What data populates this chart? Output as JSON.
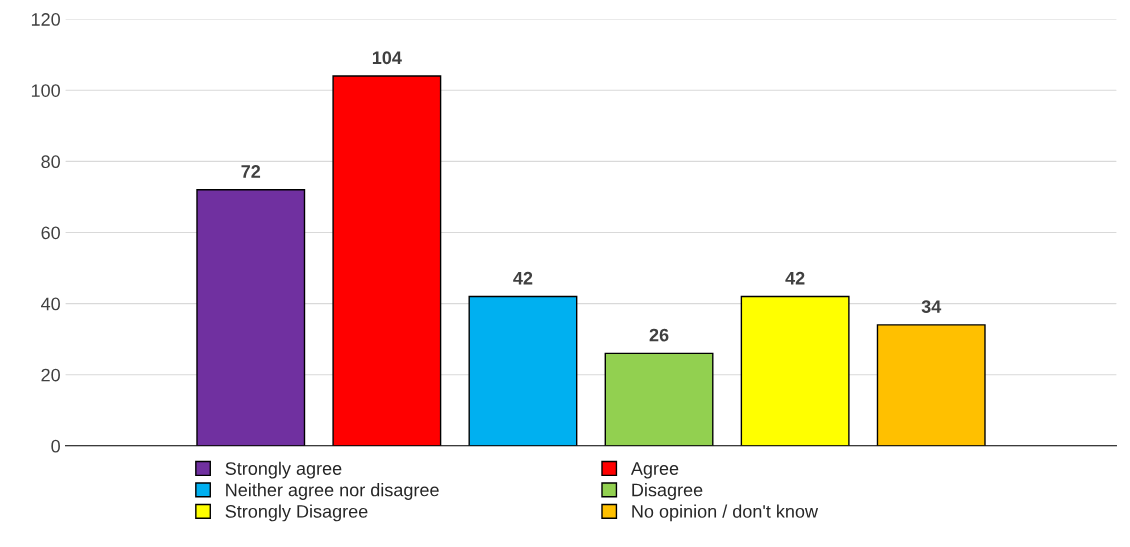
{
  "chart_data": {
    "type": "bar",
    "categories": [
      null
    ],
    "series": [
      {
        "name": "Strongly agree",
        "color": "#7030a0",
        "values": [
          72
        ]
      },
      {
        "name": "Agree",
        "color": "#ff0000",
        "values": [
          104
        ]
      },
      {
        "name": "Neither agree nor disagree",
        "color": "#00b0f0",
        "values": [
          42
        ]
      },
      {
        "name": "Disagree",
        "color": "#92d050",
        "values": [
          26
        ]
      },
      {
        "name": "Strongly Disagree",
        "color": "#ffff00",
        "values": [
          42
        ]
      },
      {
        "name": "No opinion / don't know",
        "color": "#ffc000",
        "values": [
          34
        ]
      }
    ],
    "ylim": [
      0,
      120
    ],
    "yticks": [
      0,
      20,
      40,
      60,
      80,
      100,
      120
    ],
    "grid": "y",
    "data_labels": true,
    "legend": "bottom"
  }
}
